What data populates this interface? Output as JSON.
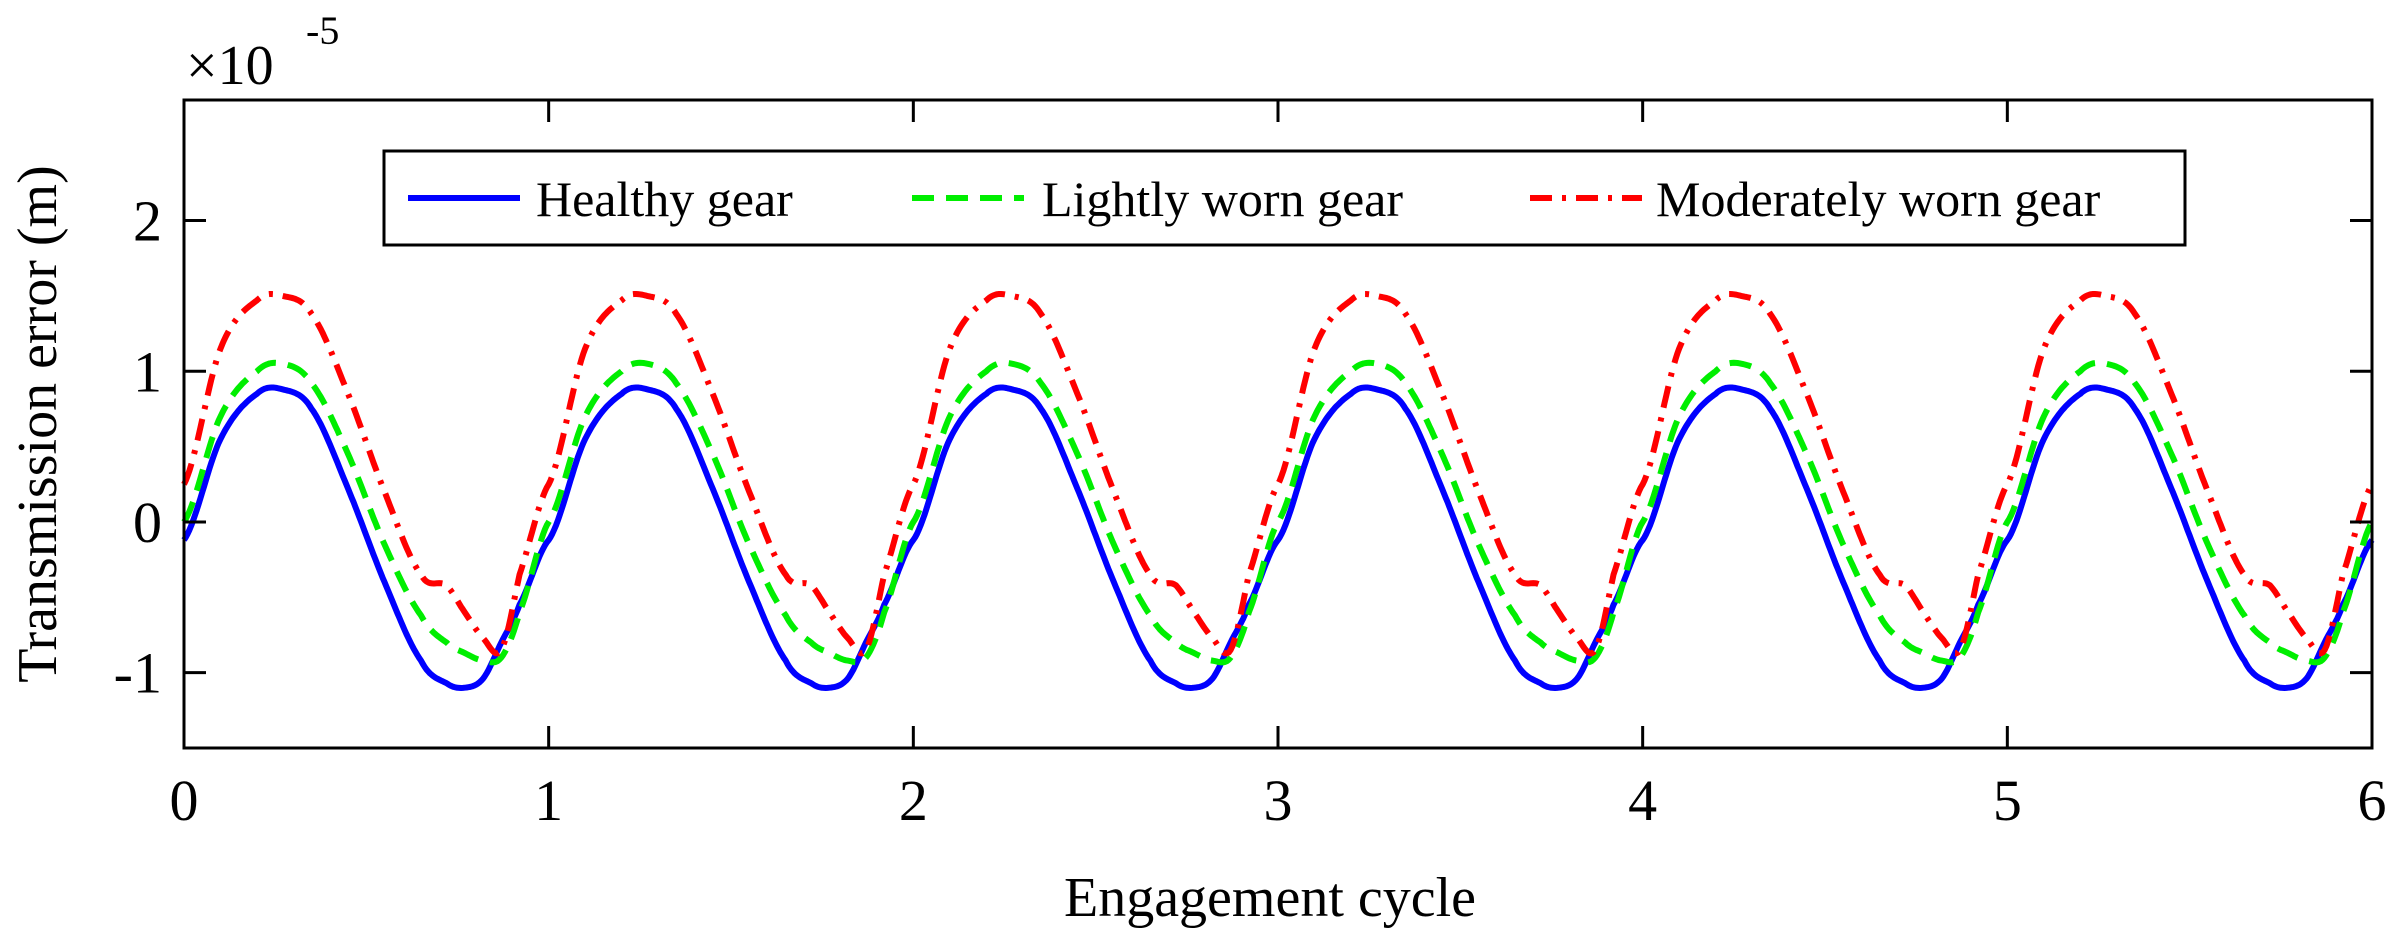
{
  "chart_data": {
    "type": "line",
    "title": "",
    "xlabel": "Engagement cycle",
    "ylabel": "Transmission error (m)",
    "y_exponent_label": "×10",
    "y_exponent_power": "-5",
    "xlim": [
      0,
      6
    ],
    "ylim": [
      -1.5,
      2.8
    ],
    "x_ticks": [
      0,
      1,
      2,
      3,
      4,
      5,
      6
    ],
    "x_tick_labels": [
      "0",
      "1",
      "2",
      "3",
      "4",
      "5",
      "6"
    ],
    "y_ticks": [
      -1,
      0,
      1,
      2
    ],
    "y_tick_labels": [
      "-1",
      "0",
      "1",
      "2"
    ],
    "grid": false,
    "legend_position": "top",
    "x": [
      0.0,
      0.1,
      0.2,
      0.27,
      0.35,
      0.45,
      0.55,
      0.65,
      0.72,
      0.77,
      0.82,
      0.87,
      0.92,
      1.0
    ],
    "series": [
      {
        "name": "Healthy gear",
        "color": "#0000ff",
        "dash": "solid",
        "values": [
          -0.12,
          0.55,
          0.85,
          0.88,
          0.75,
          0.22,
          -0.4,
          -0.92,
          -1.07,
          -1.1,
          -1.04,
          -0.8,
          -0.55,
          -0.12
        ]
      },
      {
        "name": "Lightly worn gear",
        "color": "#00ee00",
        "dash": "dashed",
        "values": [
          0.0,
          0.7,
          1.0,
          1.05,
          0.92,
          0.45,
          -0.15,
          -0.62,
          -0.8,
          -0.87,
          -0.92,
          -0.9,
          -0.6,
          0.0
        ]
      },
      {
        "name": "Moderately worn gear",
        "color": "#ff0000",
        "dash": "dashdot",
        "values": [
          0.25,
          1.15,
          1.47,
          1.5,
          1.38,
          0.85,
          0.2,
          -0.35,
          -0.42,
          -0.6,
          -0.77,
          -0.85,
          -0.35,
          0.25
        ]
      }
    ]
  }
}
